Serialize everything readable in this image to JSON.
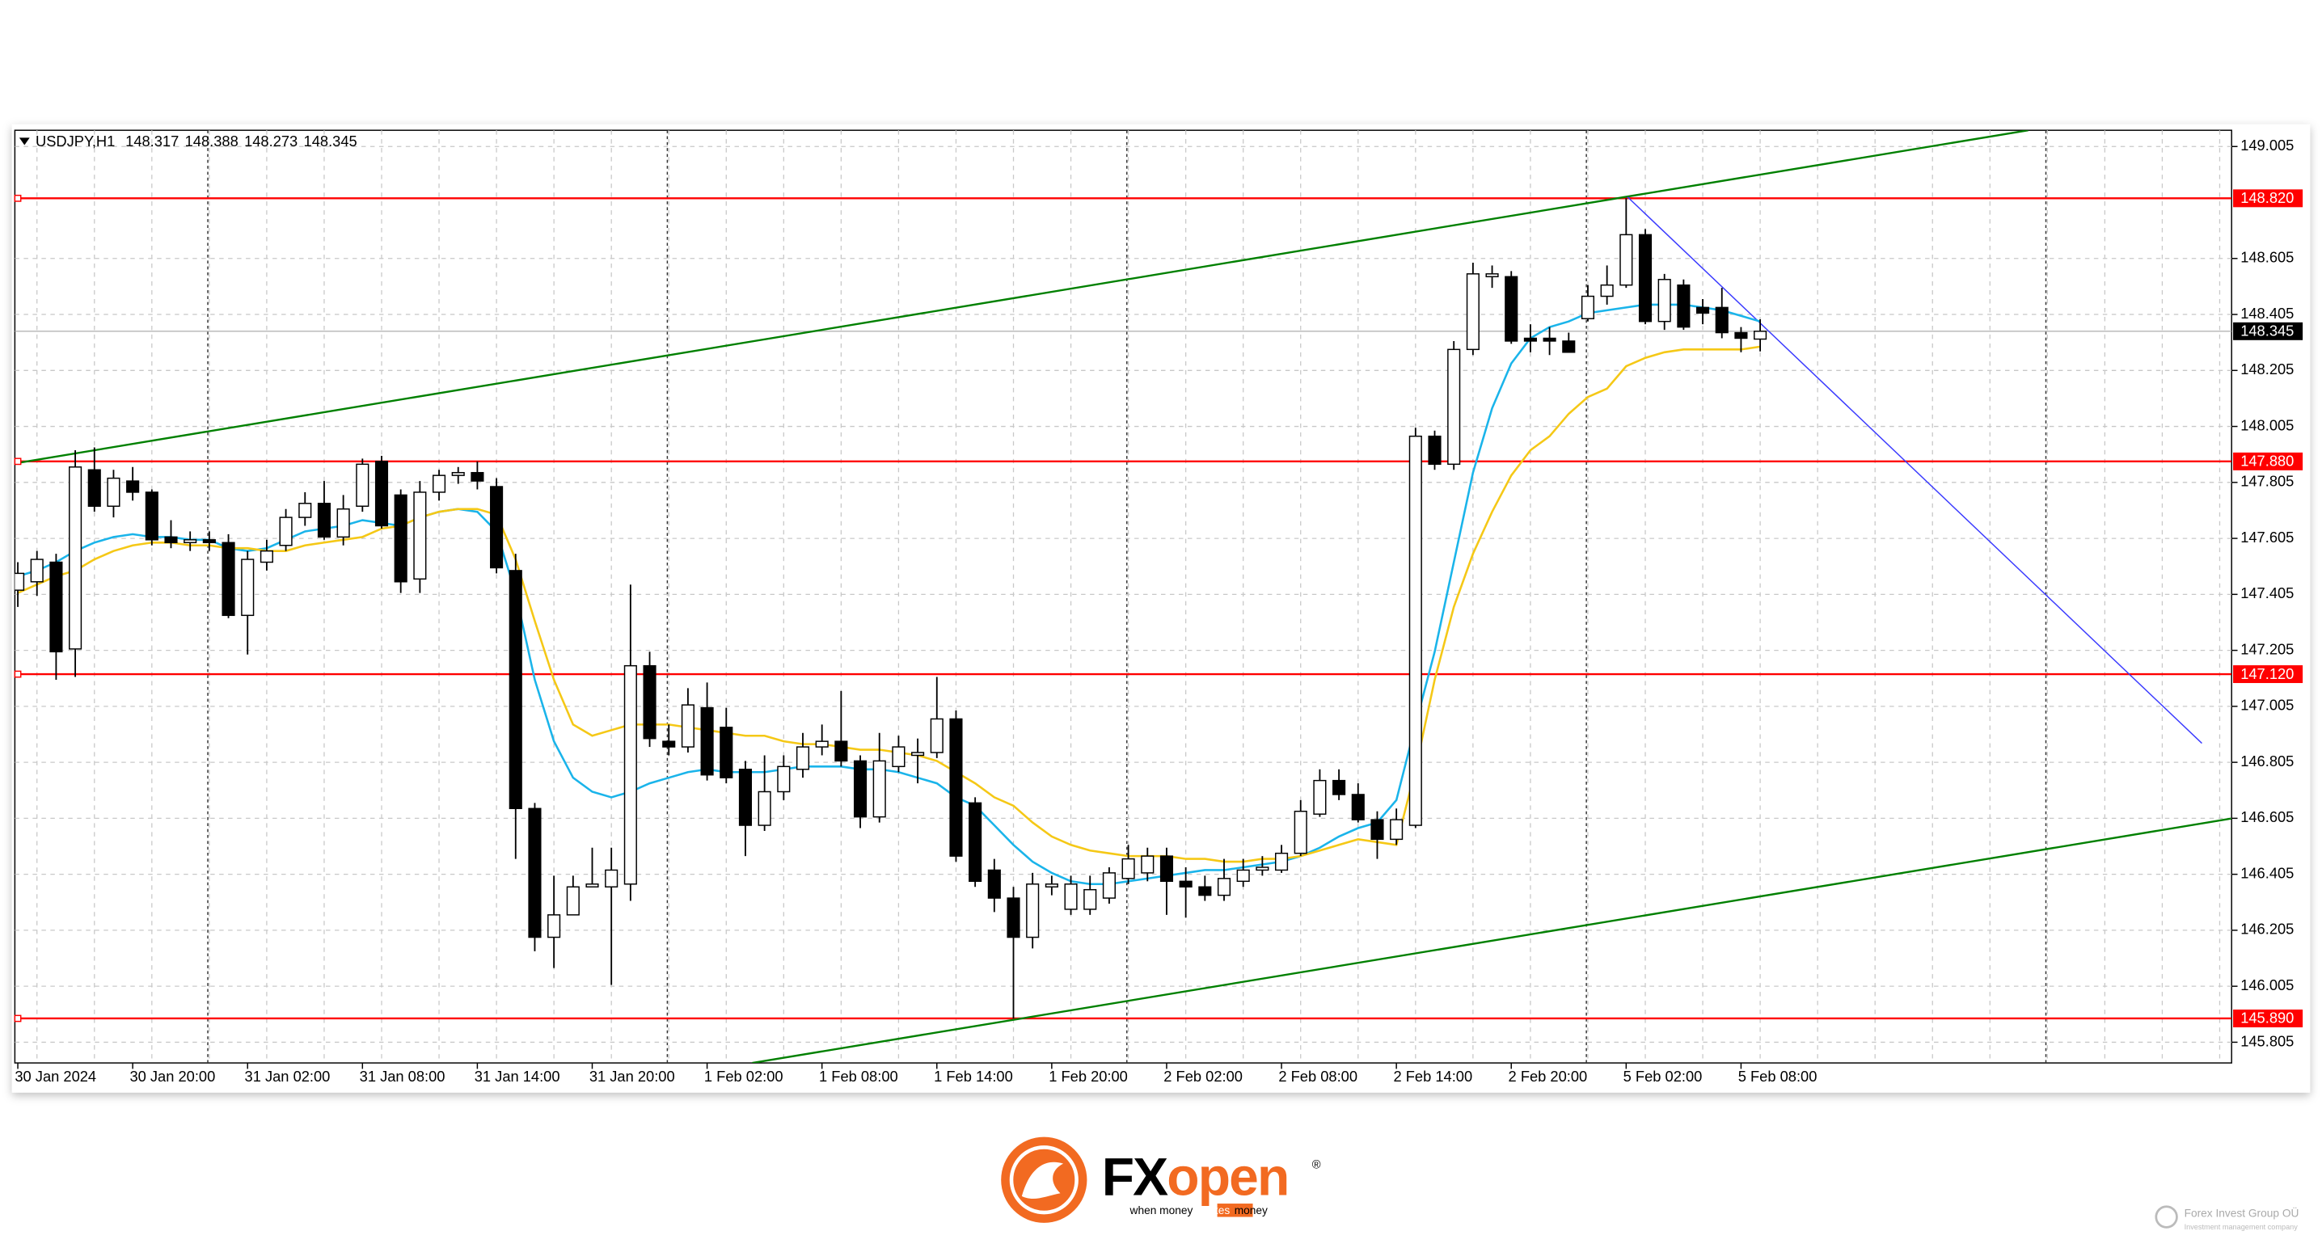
{
  "chart_data": {
    "type": "candlestick",
    "symbol": "USDJPY,H1",
    "categories": [
      "30 Jan 2024",
      null,
      null,
      null,
      null,
      null,
      "30 Jan 20:00",
      null,
      null,
      null,
      null,
      null,
      "31 Jan 02:00",
      null,
      null,
      null,
      null,
      null,
      "31 Jan 08:00",
      null,
      null,
      null,
      null,
      null,
      "31 Jan 14:00",
      null,
      null,
      null,
      null,
      null,
      "31 Jan 20:00",
      null,
      null,
      null,
      null,
      null,
      "1 Feb 02:00",
      null,
      null,
      null,
      null,
      null,
      "1 Feb 08:00",
      null,
      null,
      null,
      null,
      null,
      "1 Feb 14:00",
      null,
      null,
      null,
      null,
      null,
      "1 Feb 20:00",
      null,
      null,
      null,
      null,
      null,
      "2 Feb 02:00",
      null,
      null,
      null,
      null,
      null,
      "2 Feb 08:00",
      null,
      null,
      null,
      null,
      null,
      "2 Feb 14:00",
      null,
      null,
      null,
      null,
      null,
      "2 Feb 20:00",
      null,
      null,
      null,
      null,
      null,
      "5 Feb 02:00",
      null,
      null,
      null,
      null,
      null,
      "5 Feb 08:00",
      null
    ],
    "open": [
      147.42,
      147.45,
      147.52,
      147.21,
      147.85,
      147.72,
      147.81,
      147.77,
      147.61,
      147.59,
      147.6,
      147.59,
      147.33,
      147.52,
      147.58,
      147.68,
      147.73,
      147.61,
      147.72,
      147.88,
      147.76,
      147.46,
      147.77,
      147.83,
      147.84,
      147.79,
      147.49,
      146.64,
      146.18,
      146.26,
      146.36,
      146.36,
      146.37,
      147.15,
      146.88,
      146.86,
      147.0,
      146.93,
      146.78,
      146.58,
      146.7,
      146.78,
      146.86,
      146.88,
      146.81,
      146.61,
      146.79,
      146.83,
      146.84,
      146.96,
      146.66,
      146.42,
      146.32,
      146.18,
      146.36,
      146.28,
      146.28,
      146.32,
      146.39,
      146.41,
      146.47,
      146.38,
      146.36,
      146.33,
      146.38,
      146.42,
      146.42,
      146.48,
      146.62,
      146.74,
      146.69,
      146.6,
      146.53,
      146.58,
      147.97,
      147.87,
      148.28,
      148.54,
      148.54,
      148.32,
      148.32,
      148.31,
      148.39,
      148.47,
      148.51,
      148.69,
      148.38,
      148.51,
      148.43,
      148.43,
      148.34,
      148.317
    ],
    "high": [
      147.52,
      147.56,
      147.55,
      147.92,
      147.93,
      147.85,
      147.86,
      147.78,
      147.67,
      147.63,
      147.63,
      147.62,
      147.56,
      147.6,
      147.71,
      147.77,
      147.81,
      147.76,
      147.89,
      147.9,
      147.78,
      147.81,
      147.85,
      147.86,
      147.88,
      147.82,
      147.55,
      146.66,
      146.4,
      146.4,
      146.5,
      146.5,
      147.44,
      147.2,
      146.94,
      147.07,
      147.09,
      147.0,
      146.81,
      146.83,
      146.83,
      146.91,
      146.94,
      147.06,
      146.83,
      146.91,
      146.9,
      146.89,
      147.11,
      146.99,
      146.68,
      146.46,
      146.36,
      146.41,
      146.4,
      146.4,
      146.4,
      146.43,
      146.51,
      146.5,
      146.5,
      146.43,
      146.4,
      146.46,
      146.46,
      146.47,
      146.51,
      146.67,
      146.78,
      146.78,
      146.73,
      146.63,
      146.64,
      148.0,
      147.99,
      148.31,
      148.59,
      148.58,
      148.56,
      148.37,
      148.36,
      148.34,
      148.51,
      148.58,
      148.82,
      148.71,
      148.55,
      148.53,
      148.46,
      148.5,
      148.36,
      148.388
    ],
    "low": [
      147.36,
      147.4,
      147.1,
      147.11,
      147.7,
      147.68,
      147.74,
      147.58,
      147.57,
      147.56,
      147.56,
      147.32,
      147.19,
      147.49,
      147.56,
      147.65,
      147.6,
      147.58,
      147.7,
      147.64,
      147.41,
      147.41,
      147.74,
      147.8,
      147.78,
      147.48,
      146.46,
      146.13,
      146.07,
      146.26,
      146.36,
      146.01,
      146.31,
      146.86,
      146.83,
      146.84,
      146.74,
      146.73,
      146.47,
      146.56,
      146.67,
      146.75,
      146.83,
      146.79,
      146.57,
      146.59,
      146.77,
      146.73,
      146.82,
      146.45,
      146.36,
      146.27,
      145.89,
      146.14,
      146.33,
      146.26,
      146.26,
      146.3,
      146.37,
      146.38,
      146.26,
      146.25,
      146.31,
      146.31,
      146.36,
      146.4,
      146.41,
      146.47,
      146.61,
      146.67,
      146.59,
      146.46,
      146.51,
      146.57,
      147.85,
      147.85,
      148.26,
      148.5,
      148.3,
      148.27,
      148.26,
      148.27,
      148.38,
      148.44,
      148.5,
      148.37,
      148.35,
      148.35,
      148.37,
      148.32,
      148.27,
      148.273
    ],
    "close": [
      147.48,
      147.53,
      147.2,
      147.86,
      147.72,
      147.82,
      147.77,
      147.6,
      147.59,
      147.6,
      147.59,
      147.33,
      147.53,
      147.56,
      147.68,
      147.73,
      147.61,
      147.71,
      147.87,
      147.65,
      147.45,
      147.77,
      147.83,
      147.84,
      147.81,
      147.5,
      146.64,
      146.18,
      146.26,
      146.36,
      146.37,
      146.42,
      147.15,
      146.89,
      146.86,
      147.01,
      146.76,
      146.75,
      146.58,
      146.7,
      146.79,
      146.86,
      146.88,
      146.81,
      146.61,
      146.81,
      146.86,
      146.84,
      146.96,
      146.47,
      146.38,
      146.32,
      146.18,
      146.37,
      146.37,
      146.37,
      146.35,
      146.41,
      146.46,
      146.47,
      146.38,
      146.36,
      146.33,
      146.39,
      146.42,
      146.43,
      146.48,
      146.63,
      146.74,
      146.69,
      146.6,
      146.53,
      146.6,
      147.97,
      147.87,
      148.28,
      148.55,
      148.55,
      148.31,
      148.31,
      148.31,
      148.27,
      148.47,
      148.51,
      148.69,
      148.38,
      148.53,
      148.36,
      148.41,
      148.34,
      148.32,
      148.345
    ],
    "up_color": "#ffffff",
    "down_color": "#000000",
    "moving_averages": [
      {
        "color": "#1ab4ea",
        "values": [
          147.47,
          147.49,
          147.52,
          147.56,
          147.59,
          147.61,
          147.62,
          147.61,
          147.61,
          147.6,
          147.6,
          147.57,
          147.56,
          147.57,
          147.6,
          147.63,
          147.64,
          147.65,
          147.67,
          147.66,
          147.65,
          147.68,
          147.7,
          147.71,
          147.7,
          147.63,
          147.41,
          147.1,
          146.88,
          146.75,
          146.7,
          146.68,
          146.7,
          146.73,
          146.75,
          146.77,
          146.78,
          146.77,
          146.77,
          146.77,
          146.78,
          146.79,
          146.79,
          146.79,
          146.78,
          146.78,
          146.77,
          146.75,
          146.73,
          146.68,
          146.65,
          146.58,
          146.51,
          146.45,
          146.41,
          146.38,
          146.37,
          146.37,
          146.38,
          146.39,
          146.4,
          146.41,
          146.42,
          146.42,
          146.43,
          146.44,
          146.45,
          146.47,
          146.5,
          146.54,
          146.57,
          146.59,
          146.67,
          146.94,
          147.2,
          147.52,
          147.84,
          148.07,
          148.23,
          148.32,
          148.36,
          148.38,
          148.41,
          148.42,
          148.43,
          148.44,
          148.44,
          148.44,
          148.43,
          148.42,
          148.4,
          148.38
        ]
      },
      {
        "color": "#f5c816",
        "values": [
          147.41,
          147.44,
          147.47,
          147.49,
          147.53,
          147.56,
          147.58,
          147.59,
          147.59,
          147.58,
          147.58,
          147.57,
          147.57,
          147.56,
          147.56,
          147.58,
          147.59,
          147.6,
          147.61,
          147.64,
          147.65,
          147.68,
          147.7,
          147.71,
          147.71,
          147.69,
          147.53,
          147.31,
          147.1,
          146.94,
          146.9,
          146.92,
          146.94,
          146.94,
          146.94,
          146.93,
          146.92,
          146.91,
          146.9,
          146.9,
          146.88,
          146.87,
          146.87,
          146.86,
          146.85,
          146.85,
          146.84,
          146.83,
          146.81,
          146.77,
          146.73,
          146.68,
          146.65,
          146.59,
          146.54,
          146.51,
          146.49,
          146.48,
          146.47,
          146.47,
          146.47,
          146.46,
          146.46,
          146.45,
          146.45,
          146.46,
          146.46,
          146.47,
          146.49,
          146.51,
          146.53,
          146.52,
          146.51,
          146.78,
          147.1,
          147.36,
          147.55,
          147.7,
          147.83,
          147.92,
          147.97,
          148.05,
          148.11,
          148.14,
          148.22,
          148.25,
          148.27,
          148.28,
          148.28,
          148.28,
          148.28,
          148.29
        ]
      }
    ],
    "levels": [
      {
        "value": 148.82,
        "label": "148.820"
      },
      {
        "value": 147.88,
        "label": "147.880"
      },
      {
        "value": 147.12,
        "label": "147.120"
      },
      {
        "value": 145.89,
        "label": "145.890"
      }
    ],
    "level_color": "#ff0000",
    "trendlines": [
      {
        "color": "#008000",
        "x": [
          -0.15,
          105.0
        ],
        "y": [
          147.873,
          149.063
        ]
      },
      {
        "color": "#008000",
        "x": [
          38.36,
          115.6
        ],
        "y": [
          145.731,
          146.604
        ]
      },
      {
        "color": "#3a3aff",
        "x": [
          84.07,
          114.07
        ],
        "y": [
          148.825,
          146.873
        ]
      }
    ],
    "ylim": [
      145.731,
      149.063
    ],
    "yticks": [
      149.005,
      148.605,
      148.405,
      148.205,
      148.005,
      147.805,
      147.605,
      147.405,
      147.205,
      147.005,
      146.805,
      146.605,
      146.405,
      146.205,
      146.005,
      145.805
    ],
    "grid": true
  },
  "footer": {
    "brand_fx": "FX",
    "brand_open": "open",
    "registered": "®",
    "slogan_start": "when money",
    "slogan_mid": "makes",
    "slogan_end": "money",
    "company": "Forex Invest Group OÜ",
    "company_sub": "Investment management company"
  }
}
